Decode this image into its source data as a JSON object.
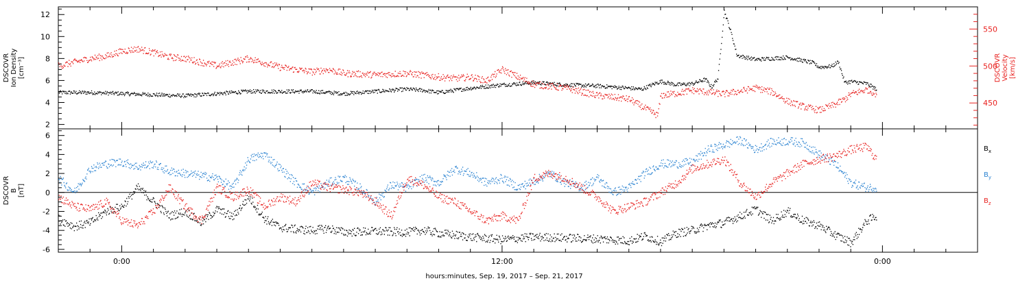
{
  "chart_data": [
    {
      "type": "scatter",
      "title": "",
      "xlabel": "",
      "y_left_label": [
        "DSCOVR",
        "Ion Density",
        "[cm⁻³]"
      ],
      "y_right_label": [
        "DSCOVR",
        "Velocity",
        "[km/s]"
      ],
      "y_left_ticks": [
        "2",
        "4",
        "6",
        "8",
        "10",
        "12"
      ],
      "y_left_range": [
        1.6,
        12.7
      ],
      "y_right_ticks": [
        "450",
        "500",
        "550"
      ],
      "y_right_range": [
        415,
        580
      ],
      "right_axis_color": "#e8201e",
      "x_range_hours": [
        -2,
        27
      ],
      "series": [
        {
          "name": "",
          "axis": "left",
          "color": "#000000",
          "x": [
            -2.0,
            -1.0,
            0.0,
            1.0,
            2.0,
            3.0,
            4.0,
            5.0,
            6.0,
            7.0,
            8.0,
            9.0,
            9.5,
            10.0,
            11.0,
            12.0,
            12.5,
            13.0,
            14.0,
            15.0,
            16.0,
            16.4,
            16.8,
            17.0,
            17.5,
            18.0,
            18.4,
            18.6,
            18.8,
            19.0,
            19.2,
            19.4,
            19.5,
            20.0,
            21.0,
            21.8,
            22.0,
            22.4,
            22.6,
            22.8,
            23.0,
            23.5,
            23.8
          ],
          "y": [
            4.9,
            4.9,
            4.8,
            4.7,
            4.6,
            4.8,
            5.0,
            5.0,
            5.0,
            4.8,
            5.0,
            5.2,
            5.1,
            4.9,
            5.3,
            5.6,
            5.7,
            5.8,
            5.6,
            5.5,
            5.3,
            5.2,
            5.7,
            5.9,
            5.6,
            5.7,
            6.1,
            5.4,
            6.2,
            12.3,
            10.5,
            8.3,
            8.2,
            7.9,
            8.1,
            7.6,
            7.2,
            7.3,
            7.7,
            5.8,
            5.9,
            5.7,
            5.2
          ]
        },
        {
          "name": "",
          "axis": "right",
          "color": "#e8201e",
          "x": [
            -2.0,
            -1.5,
            -1.0,
            -0.5,
            0.0,
            0.5,
            1.0,
            1.5,
            2.0,
            3.0,
            3.5,
            4.0,
            5.0,
            6.0,
            6.5,
            7.0,
            8.0,
            9.0,
            10.0,
            10.5,
            11.0,
            11.5,
            12.0,
            13.0,
            14.0,
            15.0,
            16.0,
            16.9,
            17.0,
            17.5,
            18.0,
            19.0,
            20.0,
            20.5,
            21.0,
            21.5,
            22.0,
            22.5,
            22.8,
            23.0,
            23.5,
            23.8
          ],
          "y": [
            500,
            505,
            510,
            513,
            520,
            523,
            518,
            512,
            510,
            500,
            505,
            510,
            498,
            492,
            495,
            490,
            488,
            490,
            485,
            483,
            485,
            480,
            495,
            475,
            470,
            460,
            455,
            433,
            460,
            463,
            467,
            462,
            470,
            465,
            452,
            445,
            440,
            448,
            455,
            462,
            468,
            462
          ]
        }
      ]
    },
    {
      "type": "scatter",
      "title": "",
      "xlabel": "hours:minutes, Sep. 19, 2017 – Sep. 21, 2017",
      "y_label": [
        "DSCOVR",
        "B",
        "[nT]"
      ],
      "y_ticks": [
        "-6",
        "-4",
        "-2",
        "0",
        "2",
        "4",
        "6"
      ],
      "y_range": [
        -6.3,
        6.7
      ],
      "x_ticks": [
        "0:00",
        "12:00",
        "0:00"
      ],
      "x_tick_hours": [
        0,
        12,
        24
      ],
      "x_range_hours": [
        -2,
        27
      ],
      "legend_placement": "right",
      "series": [
        {
          "name": "Bx",
          "name_main": "B",
          "name_sub": "x",
          "color": "#000000",
          "x": [
            -2.0,
            -1.5,
            -1.0,
            -0.5,
            0.0,
            0.5,
            1.0,
            1.5,
            2.0,
            2.5,
            3.0,
            3.5,
            4.0,
            4.5,
            5.0,
            5.5,
            6.0,
            6.5,
            7.0,
            8.0,
            9.0,
            9.5,
            10.0,
            11.0,
            12.0,
            13.0,
            14.0,
            15.0,
            16.0,
            16.5,
            17.0,
            17.5,
            18.0,
            18.5,
            19.0,
            19.5,
            20.0,
            20.5,
            21.0,
            21.5,
            22.0,
            22.5,
            23.0,
            23.5,
            23.8
          ],
          "y": [
            -2.8,
            -3.6,
            -3.2,
            -2.0,
            -1.5,
            0.5,
            -1.0,
            -2.5,
            -2.0,
            -3.2,
            -1.8,
            -2.6,
            -0.5,
            -2.8,
            -3.7,
            -3.9,
            -4.0,
            -3.8,
            -4.2,
            -4.1,
            -4.2,
            -4.0,
            -4.3,
            -4.7,
            -5.0,
            -4.7,
            -4.8,
            -4.9,
            -5.1,
            -4.6,
            -5.2,
            -4.3,
            -4.0,
            -3.5,
            -3.2,
            -2.5,
            -1.8,
            -3.0,
            -2.0,
            -3.0,
            -3.5,
            -4.5,
            -5.3,
            -3.0,
            -2.5
          ]
        },
        {
          "name": "By",
          "name_main": "B",
          "name_sub": "y",
          "color": "#2b83d1",
          "x": [
            -2.0,
            -1.5,
            -1.0,
            -0.5,
            0.0,
            0.5,
            1.0,
            1.5,
            2.0,
            3.0,
            3.5,
            4.0,
            4.5,
            5.0,
            5.5,
            6.0,
            6.5,
            7.0,
            7.5,
            8.0,
            8.5,
            9.0,
            9.5,
            10.0,
            10.5,
            11.0,
            11.5,
            12.0,
            12.5,
            13.0,
            13.5,
            14.0,
            14.5,
            15.0,
            15.5,
            16.0,
            16.5,
            17.0,
            17.5,
            18.0,
            18.5,
            19.0,
            19.5,
            20.0,
            20.5,
            21.0,
            21.5,
            22.0,
            22.5,
            23.0,
            23.5,
            23.8
          ],
          "y": [
            1.5,
            0.0,
            2.5,
            3.0,
            3.2,
            2.7,
            3.0,
            2.2,
            2.0,
            1.5,
            0.5,
            3.5,
            4.0,
            2.5,
            1.0,
            0.0,
            1.0,
            1.5,
            0.5,
            -1.0,
            0.8,
            0.5,
            1.5,
            1.0,
            2.5,
            2.0,
            1.0,
            1.5,
            0.5,
            1.2,
            2.0,
            1.0,
            0.5,
            1.5,
            0.0,
            0.5,
            2.0,
            3.0,
            3.0,
            3.2,
            4.5,
            5.0,
            5.5,
            4.5,
            5.3,
            5.4,
            5.2,
            4.0,
            3.0,
            1.0,
            0.5,
            0.5
          ]
        },
        {
          "name": "Bz",
          "name_main": "B",
          "name_sub": "z",
          "color": "#e8201e",
          "x": [
            -2.0,
            -1.5,
            -1.0,
            -0.5,
            0.0,
            0.5,
            1.0,
            1.5,
            2.0,
            2.5,
            3.0,
            3.5,
            4.0,
            4.5,
            5.0,
            5.5,
            6.0,
            6.5,
            7.0,
            7.5,
            8.0,
            8.5,
            9.0,
            9.5,
            10.0,
            10.5,
            11.0,
            11.5,
            12.0,
            12.5,
            13.0,
            13.5,
            14.0,
            14.5,
            15.0,
            15.5,
            16.0,
            16.5,
            17.0,
            17.5,
            18.0,
            18.5,
            19.0,
            19.5,
            20.0,
            20.5,
            21.0,
            21.5,
            22.0,
            22.5,
            23.0,
            23.5,
            23.8
          ],
          "y": [
            -0.5,
            -1.5,
            -1.8,
            -1.0,
            -3.0,
            -3.5,
            -2.0,
            0.5,
            -1.5,
            -3.0,
            0.5,
            -0.5,
            0.3,
            -1.5,
            -0.5,
            -1.0,
            1.0,
            0.5,
            0.3,
            0.0,
            -1.0,
            -2.5,
            1.5,
            0.8,
            -0.5,
            -1.0,
            -2.0,
            -3.0,
            -2.5,
            -3.0,
            1.5,
            2.0,
            1.5,
            0.5,
            -0.5,
            -2.0,
            -1.5,
            -1.0,
            0.0,
            1.0,
            2.5,
            3.0,
            3.5,
            1.0,
            -0.5,
            1.0,
            2.0,
            3.0,
            3.5,
            3.8,
            4.5,
            4.8,
            3.5
          ]
        }
      ]
    }
  ]
}
